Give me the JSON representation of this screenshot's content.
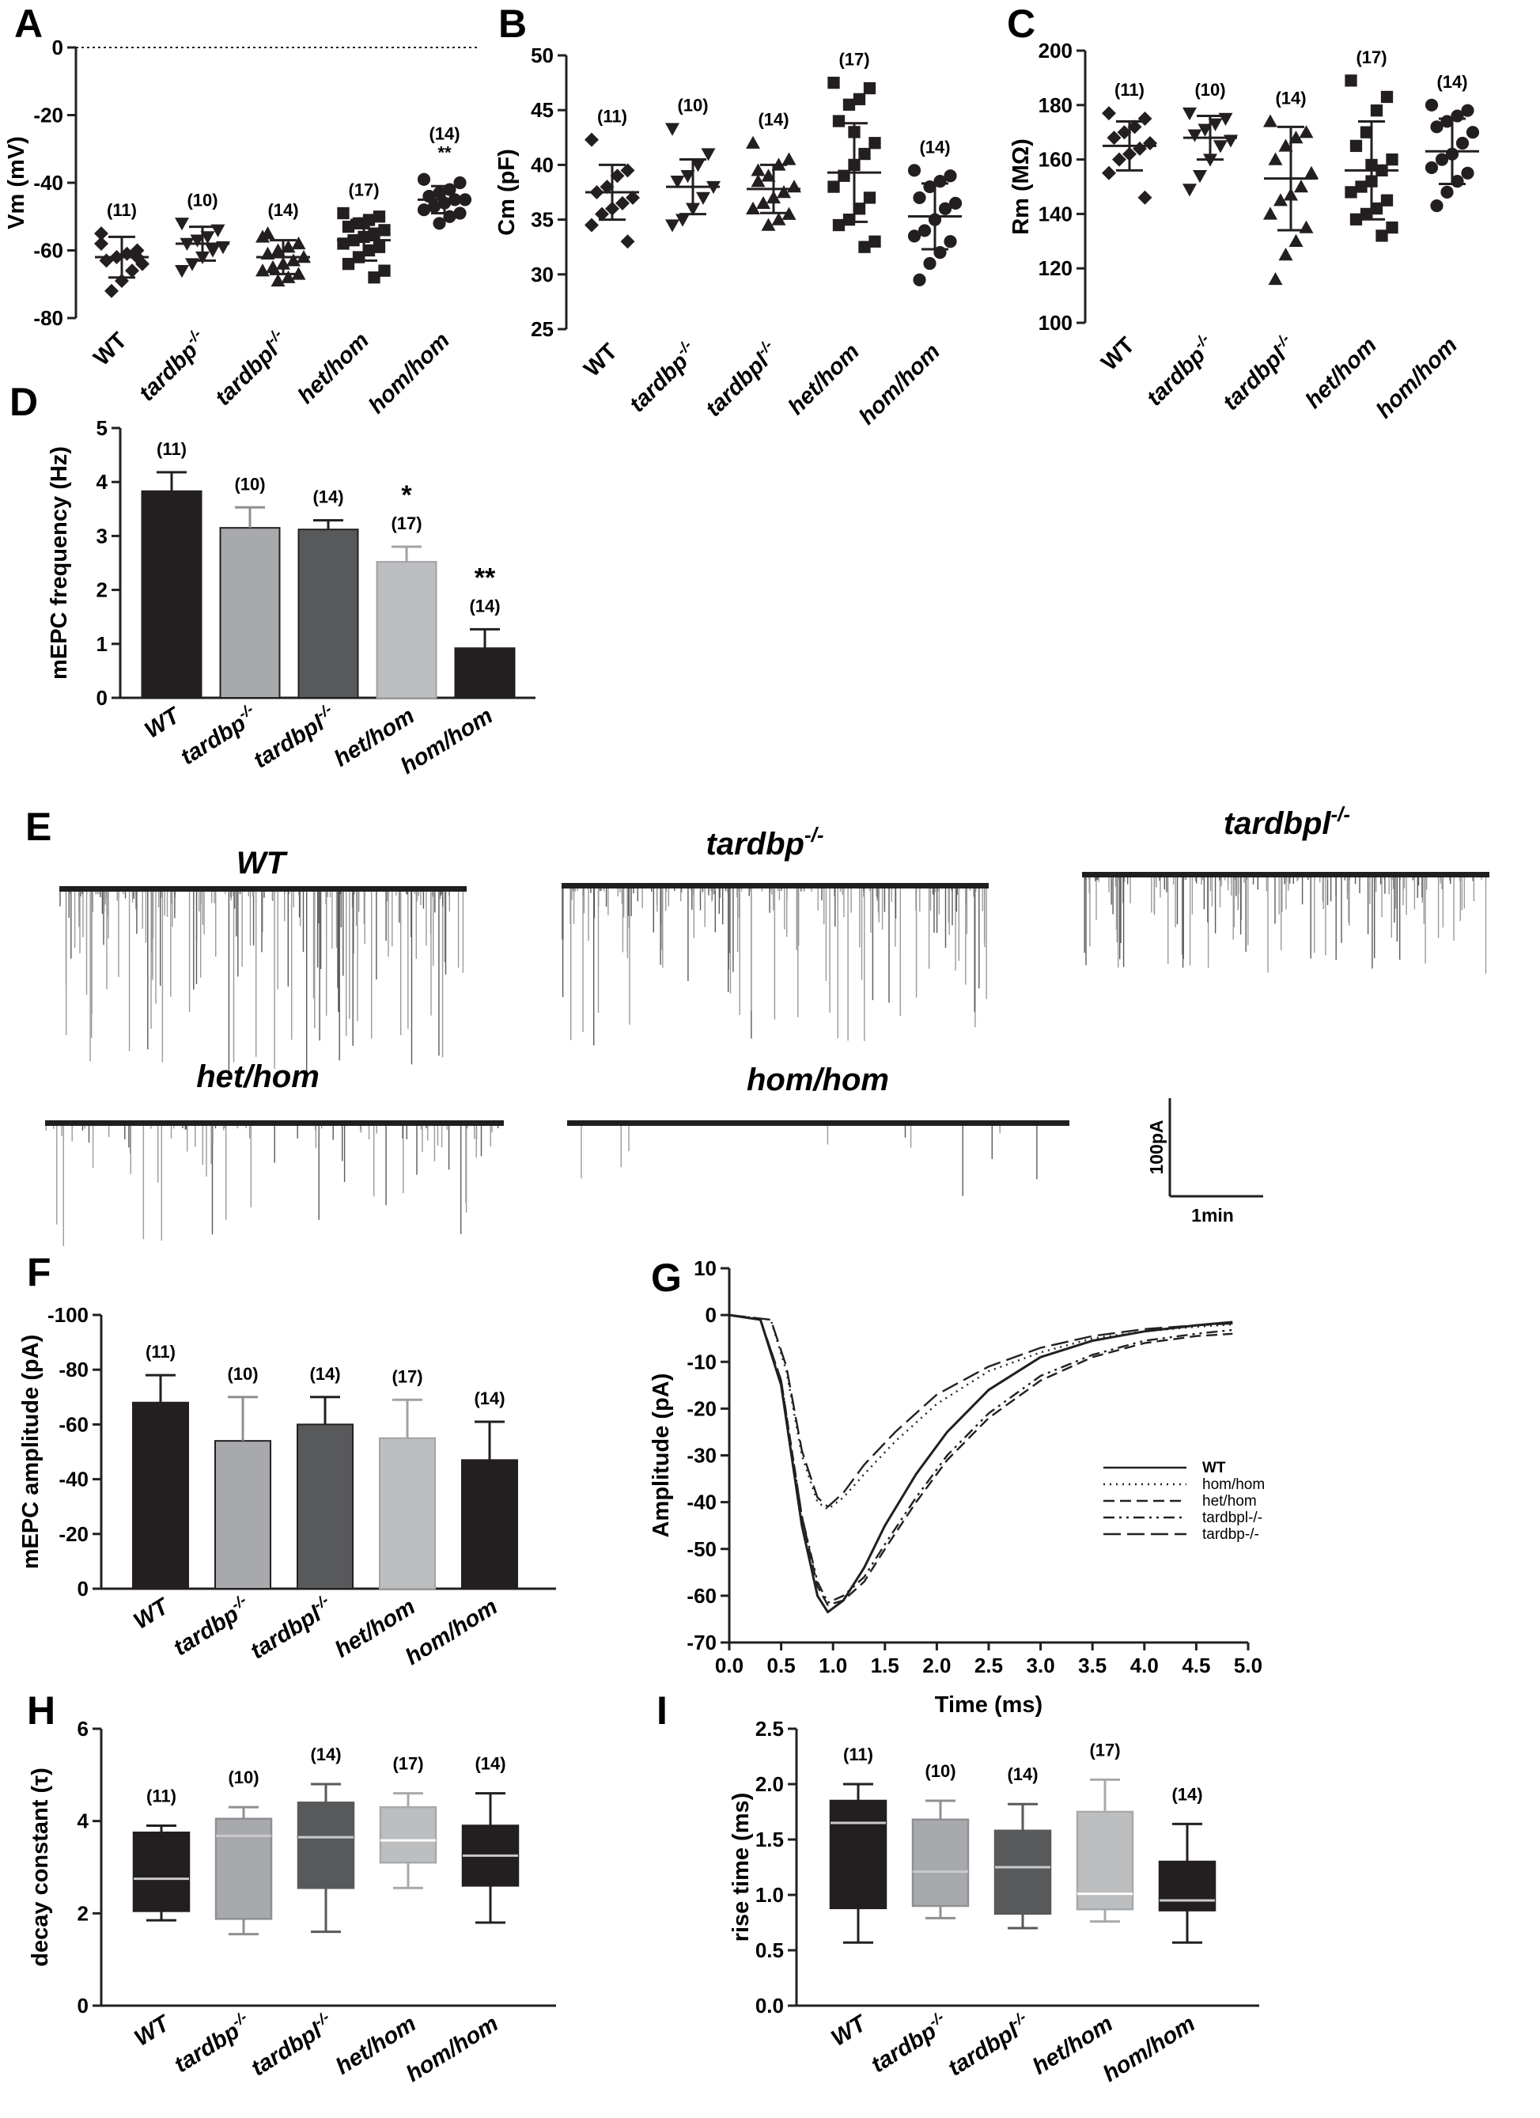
{
  "categories": [
    "WT",
    "tardbp",
    "tardbpl",
    "het/hom",
    "hom/hom"
  ],
  "category_superscript": [
    "",
    "-/-",
    "-/-",
    "",
    ""
  ],
  "n_labels": [
    "(11)",
    "(10)",
    "(14)",
    "(17)",
    "(14)"
  ],
  "colors": {
    "black": "#231f20",
    "wt_bar": "#231f20",
    "tardbp_bar": "#a7a9ac",
    "tardbpl_bar": "#58595b",
    "hethom_bar": "#bcbec0",
    "homhom_bar": "#231f20",
    "trace_dark": "#1f1f1f",
    "trace_light": "#9a9a9a"
  },
  "chart_data": [
    {
      "panel": "A",
      "type": "scatter",
      "ylabel": "Vm (mV)",
      "ylim": [
        -80,
        0
      ],
      "yticks": [
        "0",
        "-20",
        "-40",
        "-60",
        "-80"
      ],
      "reference_line": 0,
      "markers": [
        "diamond",
        "triangle-down",
        "triangle-up",
        "square",
        "circle"
      ],
      "groups": [
        {
          "category": "WT",
          "n": "(11)",
          "mean": -62,
          "sd": 6,
          "points": [
            -58,
            -60,
            -61,
            -62,
            -63,
            -64,
            -66,
            -69,
            -72,
            -55,
            -62
          ]
        },
        {
          "category": "tardbp",
          "n": "(10)",
          "mean": -58,
          "sd": 5,
          "points": [
            -52,
            -54,
            -56,
            -57,
            -58,
            -59,
            -60,
            -62,
            -64,
            -66
          ]
        },
        {
          "category": "tardbpl",
          "n": "(14)",
          "mean": -62,
          "sd": 5,
          "points": [
            -56,
            -58,
            -59,
            -60,
            -61,
            -62,
            -63,
            -64,
            -65,
            -66,
            -67,
            -68,
            -69,
            -55
          ]
        },
        {
          "category": "het/hom",
          "n": "(17)",
          "mean": -57,
          "sd": 6,
          "points": [
            -49,
            -50,
            -51,
            -52,
            -53,
            -54,
            -55,
            -56,
            -57,
            -58,
            -59,
            -60,
            -62,
            -64,
            -66,
            -68,
            -52
          ]
        },
        {
          "category": "hom/hom",
          "n": "(14)",
          "mean": -45,
          "sd": 4,
          "points": [
            -39,
            -40,
            -42,
            -43,
            -44,
            -45,
            -45,
            -46,
            -47,
            -48,
            -49,
            -50,
            -52,
            -44
          ],
          "annotation": "**"
        }
      ]
    },
    {
      "panel": "B",
      "type": "scatter",
      "ylabel": "Cm (pF)",
      "ylim": [
        25,
        50
      ],
      "yticks": [
        "50",
        "45",
        "40",
        "35",
        "30",
        "25"
      ],
      "markers": [
        "diamond",
        "triangle-down",
        "triangle-up",
        "square",
        "circle"
      ],
      "groups": [
        {
          "category": "WT",
          "n": "(11)",
          "mean": 37.5,
          "sd": 2.5,
          "points": [
            42.3,
            39.5,
            39,
            38,
            37.5,
            37,
            36.5,
            36,
            35.5,
            34.5,
            33
          ]
        },
        {
          "category": "tardbp",
          "n": "(10)",
          "mean": 38,
          "sd": 2.5,
          "points": [
            43.3,
            41,
            40,
            39,
            38.5,
            38,
            37,
            36,
            35,
            34.5
          ]
        },
        {
          "category": "tardbpl",
          "n": "(14)",
          "mean": 37.8,
          "sd": 2.2,
          "points": [
            42,
            40.5,
            40,
            39,
            38.5,
            38,
            37.5,
            37,
            36.5,
            36,
            35.5,
            35,
            34.5,
            39.5
          ]
        },
        {
          "category": "het/hom",
          "n": "(17)",
          "mean": 39.3,
          "sd": 4.5,
          "points": [
            47.5,
            47,
            46,
            45.5,
            44,
            42,
            41,
            40,
            39,
            38,
            37,
            36,
            35,
            34.5,
            33,
            32.5,
            43
          ]
        },
        {
          "category": "hom/hom",
          "n": "(14)",
          "mean": 35.3,
          "sd": 3,
          "points": [
            39.5,
            39,
            38.5,
            38,
            37,
            36.5,
            36,
            35,
            34,
            33.5,
            33,
            32,
            31,
            29.5
          ]
        }
      ]
    },
    {
      "panel": "C",
      "type": "scatter",
      "ylabel": "Rm (MΩ)",
      "ylim": [
        100,
        200
      ],
      "yticks": [
        "200",
        "180",
        "160",
        "140",
        "120",
        "100"
      ],
      "markers": [
        "diamond",
        "triangle-down",
        "triangle-up",
        "square",
        "circle"
      ],
      "groups": [
        {
          "category": "WT",
          "n": "(11)",
          "mean": 165,
          "sd": 9,
          "points": [
            177,
            175,
            172,
            170,
            168,
            166,
            164,
            162,
            160,
            155,
            146
          ]
        },
        {
          "category": "tardbp",
          "n": "(10)",
          "mean": 168,
          "sd": 8,
          "points": [
            177,
            175,
            173,
            171,
            169,
            167,
            165,
            160,
            154,
            149
          ]
        },
        {
          "category": "tardbpl",
          "n": "(14)",
          "mean": 153,
          "sd": 19,
          "points": [
            174,
            170,
            168,
            165,
            160,
            155,
            150,
            147,
            145,
            140,
            135,
            130,
            125,
            116
          ]
        },
        {
          "category": "het/hom",
          "n": "(17)",
          "mean": 156,
          "sd": 18,
          "points": [
            189,
            183,
            178,
            170,
            165,
            160,
            156,
            152,
            150,
            148,
            145,
            142,
            140,
            138,
            135,
            132,
            158
          ]
        },
        {
          "category": "hom/hom",
          "n": "(14)",
          "mean": 163,
          "sd": 12,
          "points": [
            180,
            178,
            176,
            174,
            172,
            170,
            166,
            162,
            160,
            157,
            155,
            152,
            148,
            143
          ]
        }
      ]
    },
    {
      "panel": "D",
      "type": "bar",
      "ylabel": "mEPC frequency (Hz)",
      "ylim": [
        0,
        5
      ],
      "yticks": [
        "0",
        "1",
        "2",
        "3",
        "4",
        "5"
      ],
      "values": [
        3.83,
        3.15,
        3.12,
        2.52,
        0.92
      ],
      "errors": [
        0.35,
        0.38,
        0.17,
        0.28,
        0.35
      ],
      "annotations": [
        "",
        "",
        "",
        "*",
        "**"
      ]
    },
    {
      "panel": "F",
      "type": "bar",
      "ylabel": "mEPC amplitude (pA)",
      "ylim": [
        0,
        -100
      ],
      "yticks": [
        "-100",
        "-80",
        "-60",
        "-40",
        "-20",
        "0"
      ],
      "values": [
        -68,
        -54,
        -60,
        -55,
        -47
      ],
      "errors": [
        10,
        16,
        10,
        14,
        14
      ]
    },
    {
      "panel": "G",
      "type": "line",
      "xlabel": "Time (ms)",
      "ylabel": "Amplitude (pA)",
      "xlim": [
        0,
        5
      ],
      "ylim": [
        -70,
        10
      ],
      "xticks": [
        "0.0",
        "0.5",
        "1.0",
        "1.5",
        "2.0",
        "2.5",
        "3.0",
        "3.5",
        "4.0",
        "4.5",
        "5.0"
      ],
      "yticks": [
        "10",
        "0",
        "-10",
        "-20",
        "-30",
        "-40",
        "-50",
        "-60",
        "-70"
      ],
      "series": [
        {
          "name": "WT",
          "dash": "",
          "x": [
            0,
            0.3,
            0.5,
            0.7,
            0.85,
            0.95,
            1.1,
            1.3,
            1.5,
            1.8,
            2.1,
            2.5,
            3.0,
            3.5,
            4.0,
            4.5,
            4.85
          ],
          "y": [
            0,
            -1,
            -15,
            -45,
            -60,
            -63.5,
            -61,
            -54,
            -45,
            -34,
            -25,
            -16,
            -9,
            -5.5,
            -3.5,
            -2.2,
            -1.5
          ]
        },
        {
          "name": "hom/hom",
          "dash": "2 6",
          "x": [
            0,
            0.4,
            0.55,
            0.7,
            0.85,
            0.95,
            1.1,
            1.3,
            1.6,
            2.0,
            2.5,
            3.0,
            3.5,
            4.0,
            4.5,
            4.85
          ],
          "y": [
            0,
            -1,
            -12,
            -30,
            -40,
            -41.5,
            -39,
            -34,
            -27,
            -19,
            -12,
            -8,
            -5,
            -3.5,
            -2.5,
            -2
          ]
        },
        {
          "name": "het/hom",
          "dash": "14 7",
          "x": [
            0,
            0.3,
            0.5,
            0.7,
            0.85,
            0.95,
            1.1,
            1.3,
            1.5,
            1.8,
            2.1,
            2.5,
            3.0,
            3.5,
            4.0,
            4.5,
            4.85
          ],
          "y": [
            0,
            -1,
            -14,
            -43,
            -58,
            -62,
            -61,
            -57,
            -50,
            -40,
            -31,
            -22,
            -14,
            -9,
            -6,
            -4.5,
            -4
          ]
        },
        {
          "name": "tardbpl-/-",
          "dash": "14 6 3 6 3 6",
          "x": [
            0,
            0.3,
            0.5,
            0.7,
            0.85,
            0.95,
            1.1,
            1.3,
            1.5,
            1.8,
            2.1,
            2.5,
            3.0,
            3.5,
            4.0,
            4.5,
            4.85
          ],
          "y": [
            0,
            -1,
            -14,
            -43,
            -57,
            -61.5,
            -60,
            -56,
            -49,
            -39,
            -30,
            -21,
            -13,
            -8.5,
            -5.5,
            -4,
            -3.2
          ]
        },
        {
          "name": "tardbp-/-",
          "dash": "22 8",
          "x": [
            0,
            0.4,
            0.55,
            0.7,
            0.85,
            0.95,
            1.1,
            1.3,
            1.6,
            2.0,
            2.5,
            3.0,
            3.5,
            4.0,
            4.5,
            4.85
          ],
          "y": [
            0,
            -1,
            -11,
            -29,
            -39,
            -41,
            -38,
            -32,
            -25,
            -17,
            -11,
            -7,
            -4.5,
            -3,
            -2.2,
            -1.8
          ]
        }
      ]
    },
    {
      "panel": "H",
      "type": "box",
      "ylabel": "decay constant (τ)",
      "ylim": [
        0,
        6
      ],
      "yticks": [
        "0",
        "2",
        "4",
        "6"
      ],
      "boxes": [
        {
          "category": "WT",
          "n": "(11)",
          "min": 1.85,
          "q1": 2.05,
          "median": 2.75,
          "q3": 3.75,
          "max": 3.9
        },
        {
          "category": "tardbp",
          "n": "(10)",
          "min": 1.55,
          "q1": 1.88,
          "median": 3.68,
          "q3": 4.05,
          "max": 4.3
        },
        {
          "category": "tardbpl",
          "n": "(14)",
          "min": 1.6,
          "q1": 2.55,
          "median": 3.65,
          "q3": 4.4,
          "max": 4.8
        },
        {
          "category": "het/hom",
          "n": "(17)",
          "min": 2.55,
          "q1": 3.1,
          "median": 3.58,
          "q3": 4.3,
          "max": 4.6
        },
        {
          "category": "hom/hom",
          "n": "(14)",
          "min": 1.8,
          "q1": 2.6,
          "median": 3.25,
          "q3": 3.9,
          "max": 4.6
        }
      ]
    },
    {
      "panel": "I",
      "type": "box",
      "ylabel": "rise time (ms)",
      "ylim": [
        0,
        2.5
      ],
      "yticks": [
        "0.0",
        "0.5",
        "1.0",
        "1.5",
        "2.0",
        "2.5"
      ],
      "boxes": [
        {
          "category": "WT",
          "n": "(11)",
          "min": 0.57,
          "q1": 0.88,
          "median": 1.65,
          "q3": 1.85,
          "max": 2.0
        },
        {
          "category": "tardbp",
          "n": "(10)",
          "min": 0.79,
          "q1": 0.9,
          "median": 1.21,
          "q3": 1.68,
          "max": 1.85
        },
        {
          "category": "tardbpl",
          "n": "(14)",
          "min": 0.7,
          "q1": 0.83,
          "median": 1.25,
          "q3": 1.58,
          "max": 1.82
        },
        {
          "category": "het/hom",
          "n": "(17)",
          "min": 0.76,
          "q1": 0.87,
          "median": 1.01,
          "q3": 1.75,
          "max": 2.04
        },
        {
          "category": "hom/hom",
          "n": "(14)",
          "min": 0.57,
          "q1": 0.86,
          "median": 0.95,
          "q3": 1.3,
          "max": 1.64
        }
      ]
    }
  ],
  "traces": {
    "panel": "E",
    "labels": [
      "WT",
      "tardbp",
      "tardbpl",
      "het/hom",
      "hom/hom"
    ],
    "superscripts": [
      "",
      "-/-",
      "-/-",
      "",
      ""
    ],
    "scale_bar": {
      "y_label": "100pA",
      "x_label": "1min"
    }
  },
  "panel_labels": [
    "A",
    "B",
    "C",
    "D",
    "E",
    "F",
    "G",
    "H",
    "I"
  ]
}
